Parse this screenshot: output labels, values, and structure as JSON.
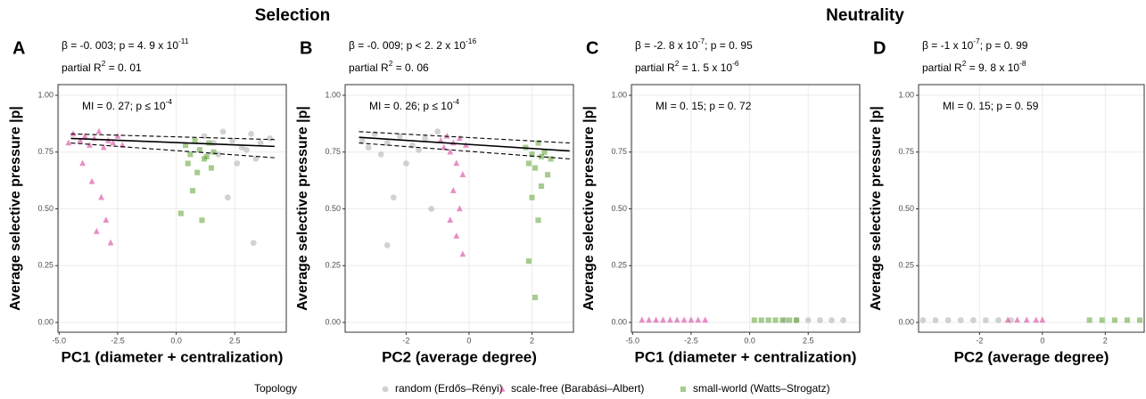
{
  "figure": {
    "titles": [
      "Selection",
      "Neutrality"
    ],
    "legend_title": "Topology"
  },
  "chart_data": [
    {
      "type": "scatter",
      "label": "A",
      "stats": [
        [
          {
            "text": "β = -0. 003; p = 4. 9 x 10"
          },
          {
            "sup": "-11"
          }
        ],
        [
          {
            "text": "partial R"
          },
          {
            "sup": "2"
          },
          {
            "text": " = 0. 01"
          }
        ]
      ],
      "mi": [
        {
          "text": "MI = 0. 27; p  ≤  10"
        },
        {
          "sup": "-4"
        }
      ],
      "x_label": "PC1 (diameter + centralization)",
      "y_label": "Average selective pressure |p|",
      "xlim": [
        -5.05,
        4.7
      ],
      "xticks": [
        {
          "value": -5,
          "label": "-5.0"
        },
        {
          "value": -2.5,
          "label": "-2.5"
        },
        {
          "value": 0,
          "label": "0.0"
        },
        {
          "value": 2.5,
          "label": "2.5"
        }
      ],
      "ylim": [
        -0.043,
        1.047
      ],
      "yticks": [
        {
          "value": 0,
          "label": "0.00"
        },
        {
          "value": 0.25,
          "label": "0.25"
        },
        {
          "value": 0.5,
          "label": "0.50"
        },
        {
          "value": 0.75,
          "label": "0.75"
        },
        {
          "value": 1,
          "label": "1.00"
        }
      ],
      "grid": true,
      "series": [
        {
          "name": "random (Erdős–Rényi)",
          "color": "#a6a6a6",
          "marker": "circle",
          "x": [
            1.2,
            1.6,
            2.0,
            2.4,
            2.8,
            3.2,
            3.6,
            4.0,
            1.8,
            2.6,
            3.0,
            3.4,
            2.2,
            3.3
          ],
          "values": [
            0.82,
            0.79,
            0.84,
            0.8,
            0.77,
            0.83,
            0.79,
            0.81,
            0.74,
            0.7,
            0.76,
            0.72,
            0.55,
            0.35
          ]
        },
        {
          "name": "scale-free (Barabási–Albert)",
          "color": "#d0208e",
          "marker": "triangle",
          "x": [
            -4.4,
            -4.1,
            -3.9,
            -3.7,
            -3.5,
            -3.3,
            -3.1,
            -2.9,
            -2.7,
            -2.5,
            -2.3,
            -4.6,
            -3.6,
            -3.2,
            -3.0,
            -2.8,
            -4.0,
            -3.4
          ],
          "values": [
            0.83,
            0.8,
            0.82,
            0.78,
            0.81,
            0.84,
            0.77,
            0.8,
            0.79,
            0.82,
            0.78,
            0.79,
            0.62,
            0.55,
            0.45,
            0.35,
            0.7,
            0.4
          ]
        },
        {
          "name": "small-world (Watts–Strogatz)",
          "color": "#4d9a1f",
          "marker": "square",
          "x": [
            0.4,
            0.6,
            0.8,
            1.0,
            1.2,
            1.4,
            1.6,
            0.5,
            0.9,
            1.3,
            0.7,
            1.1,
            1.5,
            0.2
          ],
          "values": [
            0.78,
            0.74,
            0.8,
            0.76,
            0.72,
            0.79,
            0.75,
            0.7,
            0.66,
            0.73,
            0.58,
            0.45,
            0.68,
            0.48
          ]
        }
      ],
      "fit": {
        "x": [
          -4.5,
          4.2
        ],
        "values": [
          0.81,
          0.775
        ],
        "lower": [
          0.79,
          0.725
        ],
        "upper": [
          0.83,
          0.805
        ]
      }
    },
    {
      "type": "scatter",
      "label": "B",
      "stats": [
        [
          {
            "text": "β = -0. 009; p < 2. 2 x 10"
          },
          {
            "sup": "-16"
          }
        ],
        [
          {
            "text": "partial R"
          },
          {
            "sup": "2"
          },
          {
            "text": " = 0. 06"
          }
        ]
      ],
      "mi": [
        {
          "text": "MI = 0. 26; p  ≤  10"
        },
        {
          "sup": "-4"
        }
      ],
      "x_label": "PC2 (average degree)",
      "y_label": "Average selective pressure |p|",
      "xlim": [
        -3.94,
        3.32
      ],
      "xticks": [
        -2,
        0,
        2
      ],
      "ylim": [
        -0.043,
        1.047
      ],
      "yticks": [
        {
          "value": 0,
          "label": "0.00"
        },
        {
          "value": 0.25,
          "label": "0.25"
        },
        {
          "value": 0.5,
          "label": "0.50"
        },
        {
          "value": 0.75,
          "label": "0.75"
        },
        {
          "value": 1,
          "label": "1.00"
        }
      ],
      "grid": true,
      "series": [
        {
          "name": "random (Erdős–Rényi)",
          "color": "#a6a6a6",
          "marker": "circle",
          "x": [
            -3.4,
            -3.0,
            -2.6,
            -2.2,
            -1.8,
            -1.4,
            -1.0,
            -2.8,
            -2.0,
            -1.6,
            -2.4,
            -1.2,
            -3.2,
            -2.6
          ],
          "values": [
            0.8,
            0.83,
            0.79,
            0.82,
            0.78,
            0.81,
            0.84,
            0.74,
            0.7,
            0.76,
            0.55,
            0.5,
            0.77,
            0.34
          ]
        },
        {
          "name": "scale-free (Barabási–Albert)",
          "color": "#d0208e",
          "marker": "triangle",
          "x": [
            -0.9,
            -0.7,
            -0.5,
            -0.3,
            -0.1,
            -0.8,
            -0.6,
            -0.4,
            -0.2,
            -0.5,
            -0.3,
            -0.6,
            -0.4,
            -0.2
          ],
          "values": [
            0.8,
            0.82,
            0.79,
            0.81,
            0.78,
            0.77,
            0.75,
            0.7,
            0.65,
            0.58,
            0.5,
            0.45,
            0.38,
            0.3
          ]
        },
        {
          "name": "small-world (Watts–Strogatz)",
          "color": "#4d9a1f",
          "marker": "square",
          "x": [
            1.8,
            2.0,
            2.2,
            2.4,
            2.6,
            1.9,
            2.1,
            2.3,
            2.5,
            2.0,
            2.2,
            1.9,
            2.3,
            2.1
          ],
          "values": [
            0.77,
            0.74,
            0.79,
            0.75,
            0.72,
            0.7,
            0.68,
            0.73,
            0.65,
            0.55,
            0.45,
            0.27,
            0.6,
            0.11
          ]
        }
      ],
      "fit": {
        "x": [
          -3.5,
          3.2
        ],
        "values": [
          0.815,
          0.755
        ],
        "lower": [
          0.79,
          0.72
        ],
        "upper": [
          0.84,
          0.79
        ]
      }
    },
    {
      "type": "scatter",
      "label": "C",
      "stats": [
        [
          {
            "text": "β = -2. 8 x 10"
          },
          {
            "sup": "-7"
          },
          {
            "text": "; p = 0. 95"
          }
        ],
        [
          {
            "text": "partial R"
          },
          {
            "sup": "2"
          },
          {
            "text": " = 1. 5 x 10"
          },
          {
            "sup": "-6"
          }
        ]
      ],
      "mi": [
        {
          "text": "MI = 0. 15; p = 0. 72"
        }
      ],
      "x_label": "PC1 (diameter + centralization)",
      "y_label": "Average selective pressure |p|",
      "xlim": [
        -5.05,
        4.7
      ],
      "xticks": [
        {
          "value": -5,
          "label": "-5.0"
        },
        {
          "value": -2.5,
          "label": "-2.5"
        },
        {
          "value": 0,
          "label": "0.0"
        },
        {
          "value": 2.5,
          "label": "2.5"
        }
      ],
      "ylim": [
        -0.043,
        1.047
      ],
      "yticks": [
        {
          "value": 0,
          "label": "0.00"
        },
        {
          "value": 0.25,
          "label": "0.25"
        },
        {
          "value": 0.5,
          "label": "0.50"
        },
        {
          "value": 0.75,
          "label": "0.75"
        },
        {
          "value": 1,
          "label": "1.00"
        }
      ],
      "grid": true,
      "series": [
        {
          "name": "random (Erdős–Rényi)",
          "color": "#a6a6a6",
          "marker": "circle",
          "x": [
            1.5,
            2.0,
            2.5,
            3.0,
            3.5,
            4.0
          ],
          "values": [
            0.01,
            0.01,
            0.01,
            0.01,
            0.01,
            0.01
          ]
        },
        {
          "name": "scale-free (Barabási–Albert)",
          "color": "#d0208e",
          "marker": "triangle",
          "x": [
            -4.6,
            -4.3,
            -4.0,
            -3.7,
            -3.4,
            -3.1,
            -2.8,
            -2.5,
            -2.2,
            -1.9
          ],
          "values": [
            0.01,
            0.01,
            0.01,
            0.01,
            0.01,
            0.01,
            0.01,
            0.01,
            0.01,
            0.01
          ]
        },
        {
          "name": "small-world (Watts–Strogatz)",
          "color": "#4d9a1f",
          "marker": "square",
          "x": [
            0.2,
            0.5,
            0.8,
            1.1,
            1.4,
            1.7,
            2.0
          ],
          "values": [
            0.01,
            0.01,
            0.01,
            0.01,
            0.01,
            0.01,
            0.01
          ]
        }
      ]
    },
    {
      "type": "scatter",
      "label": "D",
      "stats": [
        [
          {
            "text": "β = -1 x 10"
          },
          {
            "sup": "-7"
          },
          {
            "text": "; p = 0. 99"
          }
        ],
        [
          {
            "text": "partial R"
          },
          {
            "sup": "2"
          },
          {
            "text": " = 9. 8 x 10"
          },
          {
            "sup": "-8"
          }
        ]
      ],
      "mi": [
        {
          "text": "MI = 0. 15; p = 0. 59"
        }
      ],
      "x_label": "PC2 (average degree)",
      "y_label": "Average selective pressure |p|",
      "xlim": [
        -3.94,
        3.24
      ],
      "xticks": [
        -2,
        0,
        2
      ],
      "ylim": [
        -0.043,
        1.047
      ],
      "yticks": [
        {
          "value": 0,
          "label": "0.00"
        },
        {
          "value": 0.25,
          "label": "0.25"
        },
        {
          "value": 0.5,
          "label": "0.50"
        },
        {
          "value": 0.75,
          "label": "0.75"
        },
        {
          "value": 1,
          "label": "1.00"
        }
      ],
      "grid": true,
      "series": [
        {
          "name": "random (Erdős–Rényi)",
          "color": "#a6a6a6",
          "marker": "circle",
          "x": [
            -3.8,
            -3.4,
            -3.0,
            -2.6,
            -2.2,
            -1.8,
            -1.4,
            -1.0
          ],
          "values": [
            0.01,
            0.01,
            0.01,
            0.01,
            0.01,
            0.01,
            0.01,
            0.01
          ]
        },
        {
          "name": "scale-free (Barabási–Albert)",
          "color": "#d0208e",
          "marker": "triangle",
          "x": [
            -1.1,
            -0.8,
            -0.5,
            -0.2,
            0.0
          ],
          "values": [
            0.01,
            0.01,
            0.01,
            0.01,
            0.01
          ]
        },
        {
          "name": "small-world (Watts–Strogatz)",
          "color": "#4d9a1f",
          "marker": "square",
          "x": [
            1.5,
            1.9,
            2.3,
            2.7,
            3.1
          ],
          "values": [
            0.01,
            0.01,
            0.01,
            0.01,
            0.01
          ]
        }
      ]
    }
  ]
}
